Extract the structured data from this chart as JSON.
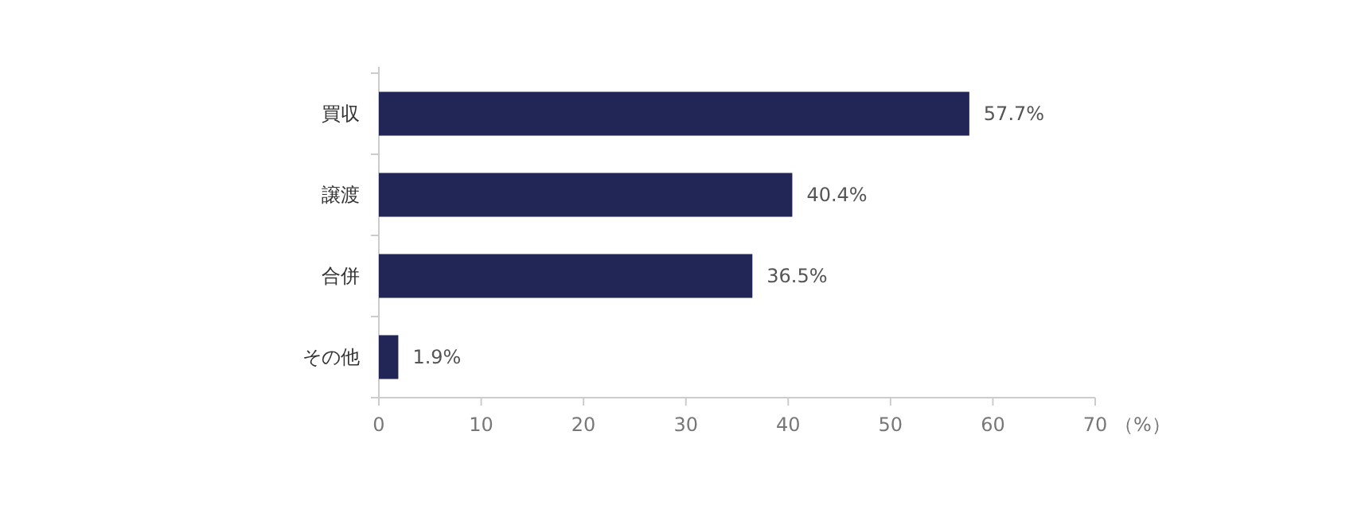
{
  "chart_data": {
    "type": "bar",
    "orientation": "horizontal",
    "categories": [
      "買収",
      "譲渡",
      "合併",
      "その他"
    ],
    "values": [
      57.7,
      40.4,
      36.5,
      1.9
    ],
    "color": "#222657",
    "value_labels": [
      "57.7%",
      "40.4%",
      "36.5%",
      "1.9%"
    ],
    "xlim": [
      0,
      70
    ],
    "xticks": [
      0,
      10,
      20,
      30,
      40,
      50,
      60,
      70
    ],
    "xlabel": "（%）"
  }
}
